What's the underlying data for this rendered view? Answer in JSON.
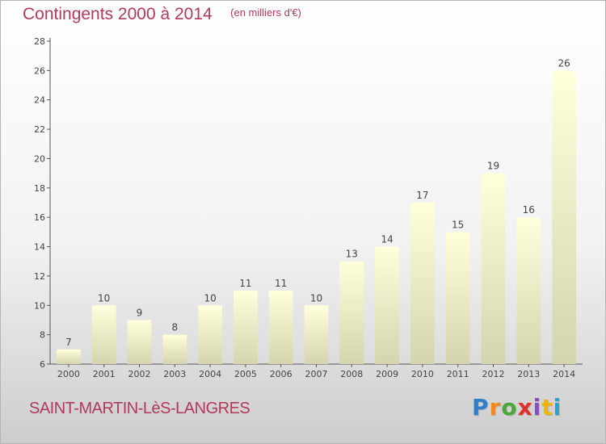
{
  "chart_data": {
    "type": "bar",
    "title": "Contingents 2000 à 2014",
    "unit_label": "(en milliers d'€)",
    "categories": [
      "2000",
      "2001",
      "2002",
      "2003",
      "2004",
      "2005",
      "2006",
      "2007",
      "2008",
      "2009",
      "2010",
      "2011",
      "2012",
      "2013",
      "2014"
    ],
    "values": [
      7,
      10,
      9,
      8,
      10,
      11,
      11,
      10,
      13,
      14,
      17,
      15,
      19,
      16,
      26
    ],
    "ylim": [
      6,
      28
    ],
    "yticks": [
      6,
      8,
      10,
      12,
      14,
      16,
      18,
      20,
      22,
      24,
      26,
      28
    ],
    "grid": false,
    "legend": "none",
    "bar_color_top": "#ffffdc",
    "bar_color_bottom": "#d4d4ae",
    "title_color": "#b03a5b"
  },
  "commune_name": "SAINT-MARTIN-LèS-LANGRES",
  "brand": {
    "letters": [
      "P",
      "r",
      "o",
      "x",
      "i",
      "t",
      "i"
    ],
    "colors": [
      "#2f7fc8",
      "#f08a1c",
      "#4aa83a",
      "#e3312a",
      "#8b4fb8",
      "#f2b500",
      "#26a3d6"
    ]
  }
}
